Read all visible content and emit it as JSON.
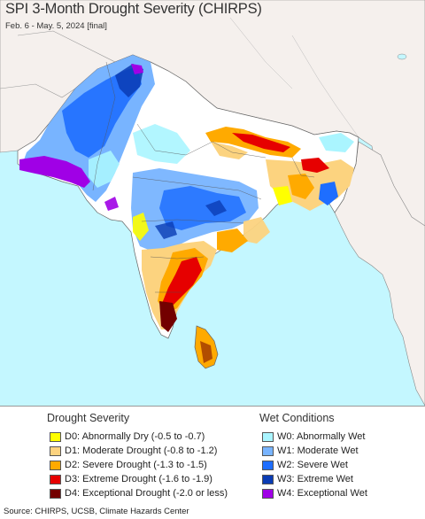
{
  "header": {
    "title": "SPI 3-Month Drought Severity (CHIRPS)",
    "subtitle": "Feb. 6 - May. 5, 2024 [final]"
  },
  "colors": {
    "land_neutral": "#ffffff",
    "outside_land": "#f5f0ed",
    "ocean": "#c4f7ff",
    "border": "#777777"
  },
  "legend": {
    "drought": {
      "title": "Drought Severity",
      "items": [
        {
          "label": "D0: Abnormally Dry (-0.5 to -0.7)",
          "color": "#ffff00"
        },
        {
          "label": "D1: Moderate Drought (-0.8 to -1.2)",
          "color": "#fcd37f"
        },
        {
          "label": "D2: Severe Drought (-1.3 to -1.5)",
          "color": "#ffaa00"
        },
        {
          "label": "D3: Extreme Drought (-1.6 to -1.9)",
          "color": "#e60000"
        },
        {
          "label": "D4: Exceptional Drought (-2.0 or less)",
          "color": "#730000"
        }
      ]
    },
    "wet": {
      "title": "Wet Conditions",
      "items": [
        {
          "label": "W0: Abnormally Wet",
          "color": "#aaf5ff"
        },
        {
          "label": "W1: Moderate Wet",
          "color": "#78b4ff"
        },
        {
          "label": "W2: Severe Wet",
          "color": "#1e6eff"
        },
        {
          "label": "W3: Extreme Wet",
          "color": "#0a3cb4"
        },
        {
          "label": "W4: Exceptional Wet",
          "color": "#a000e6"
        }
      ]
    }
  },
  "footer": {
    "source": "Source: CHIRPS, UCSB, Climate Hazards Center"
  }
}
